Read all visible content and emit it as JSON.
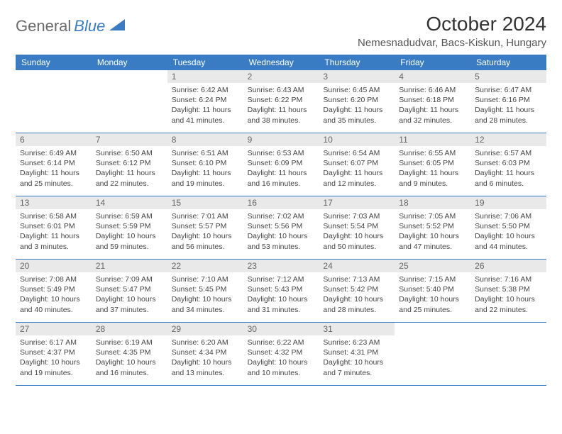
{
  "logo": {
    "text_gray": "General",
    "text_blue": "Blue"
  },
  "header": {
    "month_title": "October 2024",
    "location": "Nemesnadudvar, Bacs-Kiskun, Hungary"
  },
  "colors": {
    "header_bar": "#3a7cc4",
    "day_num_bg": "#e9e9e9",
    "border": "#3a7cc4"
  },
  "day_names": [
    "Sunday",
    "Monday",
    "Tuesday",
    "Wednesday",
    "Thursday",
    "Friday",
    "Saturday"
  ],
  "weeks": [
    [
      null,
      null,
      {
        "n": "1",
        "sr": "6:42 AM",
        "ss": "6:24 PM",
        "dl": "11 hours and 41 minutes."
      },
      {
        "n": "2",
        "sr": "6:43 AM",
        "ss": "6:22 PM",
        "dl": "11 hours and 38 minutes."
      },
      {
        "n": "3",
        "sr": "6:45 AM",
        "ss": "6:20 PM",
        "dl": "11 hours and 35 minutes."
      },
      {
        "n": "4",
        "sr": "6:46 AM",
        "ss": "6:18 PM",
        "dl": "11 hours and 32 minutes."
      },
      {
        "n": "5",
        "sr": "6:47 AM",
        "ss": "6:16 PM",
        "dl": "11 hours and 28 minutes."
      }
    ],
    [
      {
        "n": "6",
        "sr": "6:49 AM",
        "ss": "6:14 PM",
        "dl": "11 hours and 25 minutes."
      },
      {
        "n": "7",
        "sr": "6:50 AM",
        "ss": "6:12 PM",
        "dl": "11 hours and 22 minutes."
      },
      {
        "n": "8",
        "sr": "6:51 AM",
        "ss": "6:10 PM",
        "dl": "11 hours and 19 minutes."
      },
      {
        "n": "9",
        "sr": "6:53 AM",
        "ss": "6:09 PM",
        "dl": "11 hours and 16 minutes."
      },
      {
        "n": "10",
        "sr": "6:54 AM",
        "ss": "6:07 PM",
        "dl": "11 hours and 12 minutes."
      },
      {
        "n": "11",
        "sr": "6:55 AM",
        "ss": "6:05 PM",
        "dl": "11 hours and 9 minutes."
      },
      {
        "n": "12",
        "sr": "6:57 AM",
        "ss": "6:03 PM",
        "dl": "11 hours and 6 minutes."
      }
    ],
    [
      {
        "n": "13",
        "sr": "6:58 AM",
        "ss": "6:01 PM",
        "dl": "11 hours and 3 minutes."
      },
      {
        "n": "14",
        "sr": "6:59 AM",
        "ss": "5:59 PM",
        "dl": "10 hours and 59 minutes."
      },
      {
        "n": "15",
        "sr": "7:01 AM",
        "ss": "5:57 PM",
        "dl": "10 hours and 56 minutes."
      },
      {
        "n": "16",
        "sr": "7:02 AM",
        "ss": "5:56 PM",
        "dl": "10 hours and 53 minutes."
      },
      {
        "n": "17",
        "sr": "7:03 AM",
        "ss": "5:54 PM",
        "dl": "10 hours and 50 minutes."
      },
      {
        "n": "18",
        "sr": "7:05 AM",
        "ss": "5:52 PM",
        "dl": "10 hours and 47 minutes."
      },
      {
        "n": "19",
        "sr": "7:06 AM",
        "ss": "5:50 PM",
        "dl": "10 hours and 44 minutes."
      }
    ],
    [
      {
        "n": "20",
        "sr": "7:08 AM",
        "ss": "5:49 PM",
        "dl": "10 hours and 40 minutes."
      },
      {
        "n": "21",
        "sr": "7:09 AM",
        "ss": "5:47 PM",
        "dl": "10 hours and 37 minutes."
      },
      {
        "n": "22",
        "sr": "7:10 AM",
        "ss": "5:45 PM",
        "dl": "10 hours and 34 minutes."
      },
      {
        "n": "23",
        "sr": "7:12 AM",
        "ss": "5:43 PM",
        "dl": "10 hours and 31 minutes."
      },
      {
        "n": "24",
        "sr": "7:13 AM",
        "ss": "5:42 PM",
        "dl": "10 hours and 28 minutes."
      },
      {
        "n": "25",
        "sr": "7:15 AM",
        "ss": "5:40 PM",
        "dl": "10 hours and 25 minutes."
      },
      {
        "n": "26",
        "sr": "7:16 AM",
        "ss": "5:38 PM",
        "dl": "10 hours and 22 minutes."
      }
    ],
    [
      {
        "n": "27",
        "sr": "6:17 AM",
        "ss": "4:37 PM",
        "dl": "10 hours and 19 minutes."
      },
      {
        "n": "28",
        "sr": "6:19 AM",
        "ss": "4:35 PM",
        "dl": "10 hours and 16 minutes."
      },
      {
        "n": "29",
        "sr": "6:20 AM",
        "ss": "4:34 PM",
        "dl": "10 hours and 13 minutes."
      },
      {
        "n": "30",
        "sr": "6:22 AM",
        "ss": "4:32 PM",
        "dl": "10 hours and 10 minutes."
      },
      {
        "n": "31",
        "sr": "6:23 AM",
        "ss": "4:31 PM",
        "dl": "10 hours and 7 minutes."
      },
      null,
      null
    ]
  ],
  "labels": {
    "sunrise": "Sunrise:",
    "sunset": "Sunset:",
    "daylight": "Daylight:"
  }
}
